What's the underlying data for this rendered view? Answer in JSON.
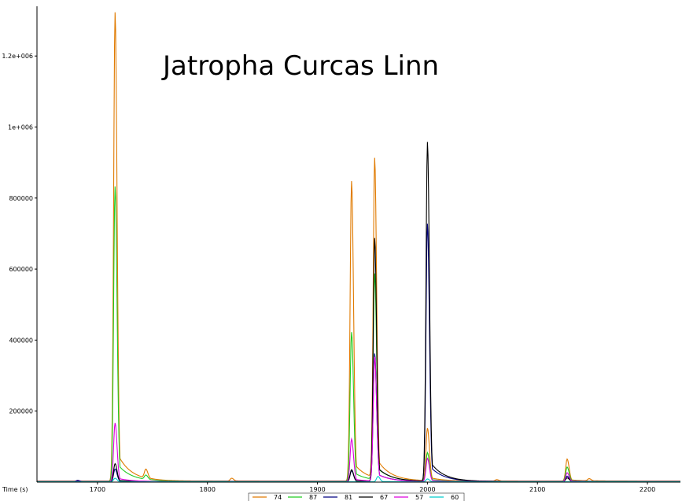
{
  "chart_data": {
    "type": "line",
    "title": "Jatropha Curcas Linn",
    "xlabel": "Time (s)",
    "ylabel": "",
    "xlim": [
      1645,
      2230
    ],
    "ylim": [
      0,
      1340000
    ],
    "x_ticks": [
      1700,
      1800,
      1900,
      2000,
      2100,
      2200
    ],
    "y_ticks": [
      200000,
      400000,
      600000,
      800000,
      1000000,
      1200000
    ],
    "y_tick_labels": [
      "200000",
      "400000",
      "600000",
      "800000",
      "1e+006",
      "1.2e+006"
    ],
    "grid": false,
    "legend_position": "bottom-center",
    "series": [
      {
        "name": "74",
        "color": "#e07a00",
        "baseline": 3000,
        "peaks": [
          [
            1716,
            1320000
          ],
          [
            1744,
            25000
          ],
          [
            1822,
            8000
          ],
          [
            1931,
            845000
          ],
          [
            1952,
            900000
          ],
          [
            2000,
            148000
          ],
          [
            2063,
            4000
          ],
          [
            2127,
            62000
          ],
          [
            2147,
            6000
          ]
        ]
      },
      {
        "name": "87",
        "color": "#22cc22",
        "baseline": 2500,
        "peaks": [
          [
            1716,
            830000
          ],
          [
            1744,
            12000
          ],
          [
            1931,
            420000
          ],
          [
            1952,
            580000
          ],
          [
            2000,
            80000
          ],
          [
            2127,
            40000
          ]
        ]
      },
      {
        "name": "81",
        "color": "#000080",
        "baseline": 2000,
        "peaks": [
          [
            1682,
            3000
          ],
          [
            1716,
            35000
          ],
          [
            1931,
            30000
          ],
          [
            1952,
            360000
          ],
          [
            2000,
            725000
          ],
          [
            2127,
            15000
          ]
        ]
      },
      {
        "name": "67",
        "color": "#000000",
        "baseline": 2000,
        "peaks": [
          [
            1716,
            50000
          ],
          [
            1931,
            33000
          ],
          [
            1952,
            685000
          ],
          [
            2000,
            955000
          ],
          [
            2127,
            10000
          ]
        ]
      },
      {
        "name": "57",
        "color": "#dd00dd",
        "baseline": 1500,
        "peaks": [
          [
            1716,
            165000
          ],
          [
            1931,
            120000
          ],
          [
            1952,
            350000
          ],
          [
            2000,
            65000
          ],
          [
            2127,
            25000
          ]
        ]
      },
      {
        "name": "60",
        "color": "#00cccc",
        "baseline": 1000,
        "peaks": [
          [
            1716,
            10000
          ],
          [
            1955,
            15000
          ],
          [
            2000,
            8000
          ]
        ]
      }
    ]
  }
}
